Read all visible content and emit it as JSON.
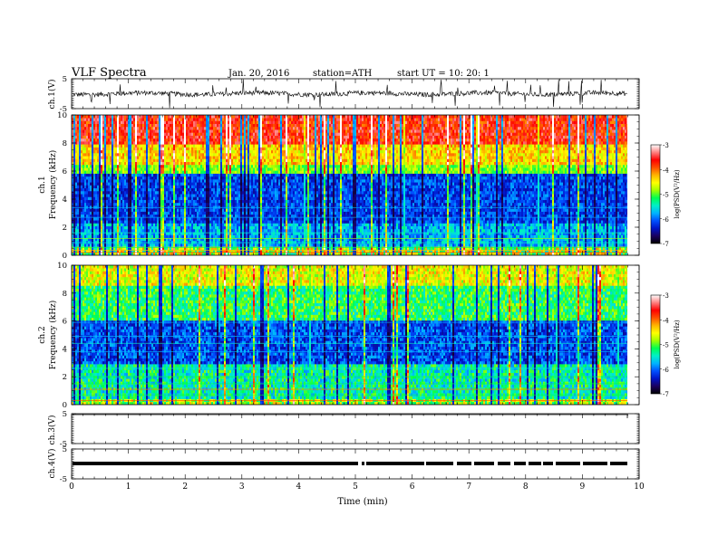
{
  "header": {
    "title": "VLF  Spectra",
    "date": "Jan. 20, 2016",
    "station": "station=ATH",
    "start": "start  UT  =    10: 20: 1"
  },
  "colorbar": {
    "label": "log(PSD(V²/Hz)",
    "ticks": [
      "-3",
      "-4",
      "-5",
      "-6",
      "-7"
    ],
    "colors": [
      "#000000",
      "#1a0060",
      "#0014c8",
      "#0050ff",
      "#00b4ff",
      "#00f0c8",
      "#00ff50",
      "#a0ff00",
      "#ffff00",
      "#ffb400",
      "#ff5000",
      "#ff0000",
      "#ff8080",
      "#ffffff"
    ]
  },
  "chart_data": [
    {
      "type": "line",
      "panel": "ch1-waveform",
      "ylabel": "ch.1(V)",
      "yticks": [
        "5",
        "-5"
      ],
      "ylim": [
        -5,
        5
      ]
    },
    {
      "type": "heatmap",
      "panel": "ch1-spectrogram",
      "ylabel": "ch.1\nFrequency  (kHz)",
      "ylabel_lines": [
        "ch.1",
        "Frequency  (kHz)"
      ],
      "yticks": [
        "10",
        "8",
        "6",
        "4",
        "2",
        "0"
      ],
      "ylim": [
        0,
        10
      ],
      "xlim": [
        0,
        10
      ],
      "zlim": [
        -7,
        -3
      ],
      "zlabel": "log(PSD(V²/Hz)"
    },
    {
      "type": "heatmap",
      "panel": "ch2-spectrogram",
      "ylabel": "ch.2\nFrequency  (kHz)",
      "ylabel_lines": [
        "ch.2",
        "Frequency  (kHz)"
      ],
      "yticks": [
        "10",
        "8",
        "6",
        "4",
        "2",
        "0"
      ],
      "ylim": [
        0,
        10
      ],
      "xlim": [
        0,
        10
      ],
      "zlim": [
        -7,
        -3
      ],
      "zlabel": "log(PSD(V²/Hz)"
    },
    {
      "type": "line",
      "panel": "ch3-waveform",
      "ylabel": "ch.3(V)",
      "yticks": [
        "5",
        "-5"
      ],
      "ylim": [
        -5,
        5
      ]
    },
    {
      "type": "line",
      "panel": "ch4-waveform",
      "ylabel": "ch.4(V)",
      "yticks": [
        "5",
        "-5"
      ],
      "ylim": [
        -5,
        5
      ]
    }
  ],
  "xaxis": {
    "label": "Time  (min)",
    "ticks": [
      "0",
      "1",
      "2",
      "3",
      "4",
      "5",
      "6",
      "7",
      "8",
      "9",
      "10"
    ],
    "xlim": [
      0,
      10
    ]
  }
}
